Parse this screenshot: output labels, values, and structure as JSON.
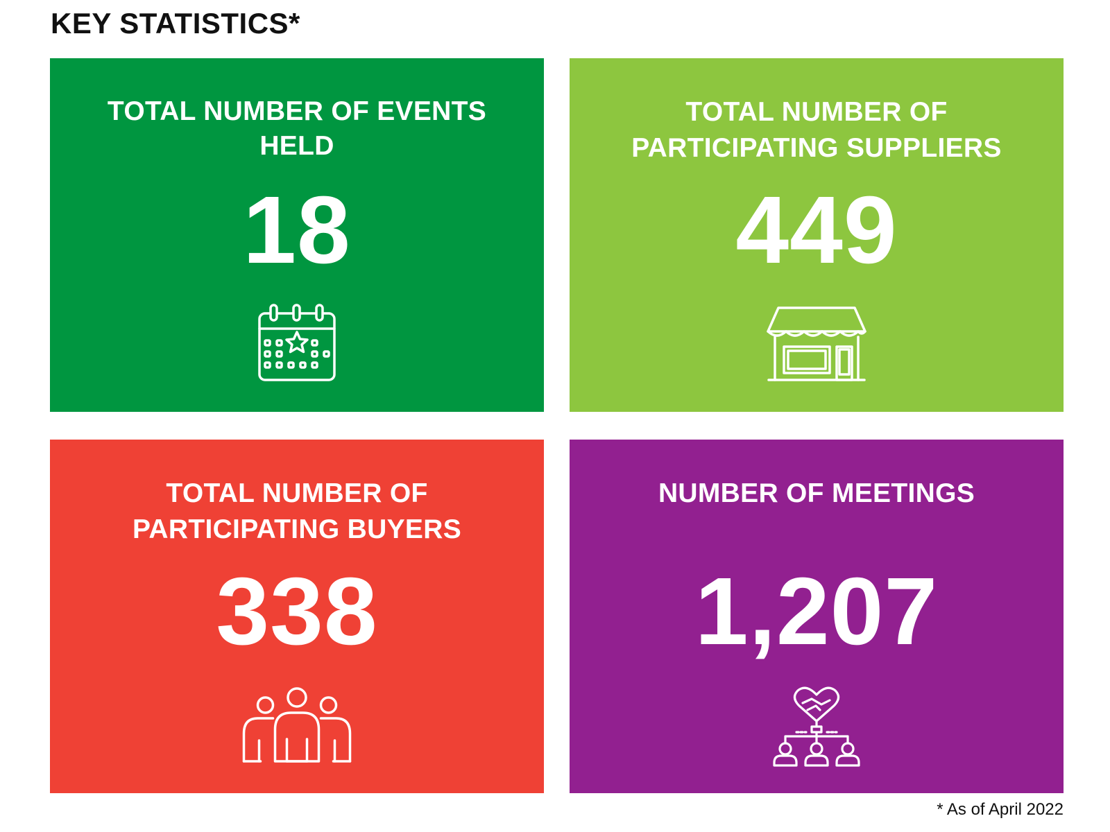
{
  "title": "KEY STATISTICS*",
  "colors": {
    "green": "#009640",
    "lime": "#8dc63f",
    "red": "#ef4135",
    "purple": "#922090"
  },
  "cards": [
    {
      "label": "TOTAL NUMBER OF EVENTS HELD",
      "value": "18",
      "icon": "calendar-star-icon",
      "color": "#009640"
    },
    {
      "label": "TOTAL NUMBER OF PARTICIPATING SUPPLIERS",
      "value": "449",
      "icon": "storefront-icon",
      "color": "#8dc63f"
    },
    {
      "label": "TOTAL NUMBER OF PARTICIPATING BUYERS",
      "value": "338",
      "icon": "people-group-icon",
      "color": "#ef4135"
    },
    {
      "label": "NUMBER OF MEETINGS",
      "value": "1,207",
      "icon": "handshake-network-icon",
      "color": "#922090"
    }
  ],
  "footnote": "* As of April 2022"
}
